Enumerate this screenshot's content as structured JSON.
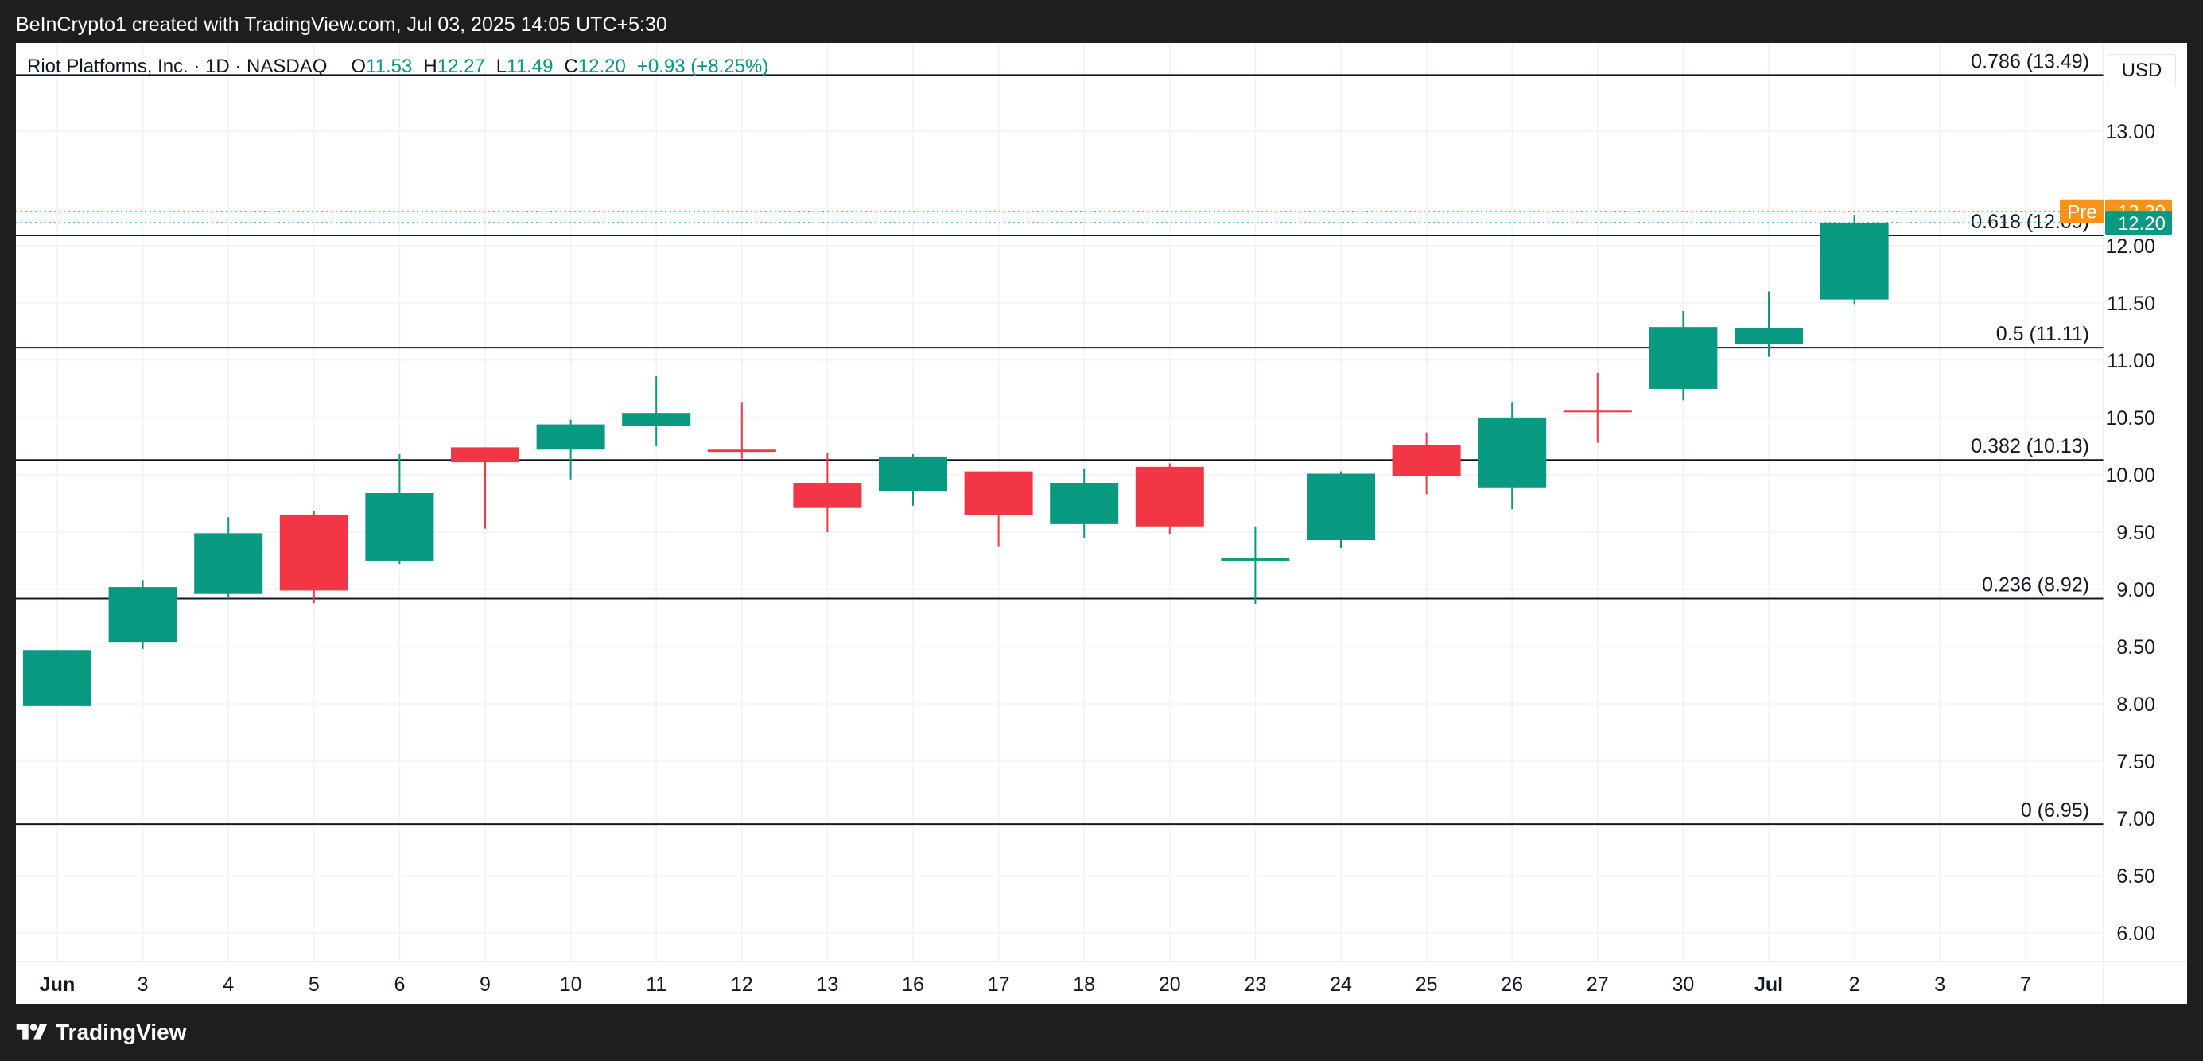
{
  "header": {
    "attribution": "BeInCrypto1 created with TradingView.com, Jul 03, 2025 14:05 UTC+5:30"
  },
  "legend": {
    "symbol": "Riot Platforms, Inc. · 1D · NASDAQ",
    "open_label": "O",
    "open": "11.53",
    "high_label": "H",
    "high": "12.27",
    "low_label": "L",
    "low": "11.49",
    "close_label": "C",
    "close": "12.20",
    "change": "+0.93 (+8.25%)"
  },
  "currency": "USD",
  "footer": {
    "brand": "TradingView"
  },
  "colors": {
    "up": "#089981",
    "down": "#f23645",
    "premarket": "#f7931a",
    "background": "#ffffff",
    "frame": "#1e1e1e"
  },
  "chart_data": {
    "type": "candlestick",
    "ylim": [
      5.75,
      13.77
    ],
    "y_ticks": [
      "6.00",
      "6.50",
      "7.00",
      "7.50",
      "8.00",
      "8.50",
      "9.00",
      "9.50",
      "10.00",
      "10.50",
      "11.00",
      "11.50",
      "12.00",
      "13.00"
    ],
    "grid": true,
    "x_labels": [
      "Jun",
      "3",
      "4",
      "5",
      "6",
      "9",
      "10",
      "11",
      "12",
      "13",
      "16",
      "17",
      "18",
      "20",
      "23",
      "24",
      "25",
      "26",
      "27",
      "30",
      "Jul",
      "2",
      "3",
      "7"
    ],
    "candles": [
      {
        "x": "Jun 2",
        "o": 7.98,
        "h": 8.47,
        "l": 7.98,
        "c": 8.47
      },
      {
        "x": "Jun 3",
        "o": 8.54,
        "h": 9.08,
        "l": 8.48,
        "c": 9.02
      },
      {
        "x": "Jun 4",
        "o": 8.96,
        "h": 9.63,
        "l": 8.92,
        "c": 9.49
      },
      {
        "x": "Jun 5",
        "o": 9.65,
        "h": 9.68,
        "l": 8.88,
        "c": 8.99
      },
      {
        "x": "Jun 6",
        "o": 9.25,
        "h": 10.18,
        "l": 9.22,
        "c": 9.84
      },
      {
        "x": "Jun 9",
        "o": 10.24,
        "h": 10.24,
        "l": 9.53,
        "c": 10.11
      },
      {
        "x": "Jun 10",
        "o": 10.22,
        "h": 10.48,
        "l": 9.96,
        "c": 10.44
      },
      {
        "x": "Jun 11",
        "o": 10.43,
        "h": 10.86,
        "l": 10.25,
        "c": 10.54
      },
      {
        "x": "Jun 12",
        "o": 10.22,
        "h": 10.63,
        "l": 10.14,
        "c": 10.2
      },
      {
        "x": "Jun 13",
        "o": 9.93,
        "h": 10.19,
        "l": 9.5,
        "c": 9.71
      },
      {
        "x": "Jun 16",
        "o": 9.86,
        "h": 10.18,
        "l": 9.73,
        "c": 10.16
      },
      {
        "x": "Jun 17",
        "o": 10.03,
        "h": 10.03,
        "l": 9.37,
        "c": 9.65
      },
      {
        "x": "Jun 18",
        "o": 9.57,
        "h": 10.05,
        "l": 9.45,
        "c": 9.93
      },
      {
        "x": "Jun 20",
        "o": 10.07,
        "h": 10.1,
        "l": 9.48,
        "c": 9.55
      },
      {
        "x": "Jun 23",
        "o": 9.25,
        "h": 9.55,
        "l": 8.87,
        "c": 9.27
      },
      {
        "x": "Jun 24",
        "o": 9.43,
        "h": 10.03,
        "l": 9.36,
        "c": 10.01
      },
      {
        "x": "Jun 25",
        "o": 10.26,
        "h": 10.37,
        "l": 9.83,
        "c": 9.99
      },
      {
        "x": "Jun 26",
        "o": 9.89,
        "h": 10.63,
        "l": 9.7,
        "c": 10.5
      },
      {
        "x": "Jun 27",
        "o": 10.56,
        "h": 10.89,
        "l": 10.28,
        "c": 10.55
      },
      {
        "x": "Jun 30",
        "o": 10.75,
        "h": 11.43,
        "l": 10.65,
        "c": 11.29
      },
      {
        "x": "Jul 1",
        "o": 11.14,
        "h": 11.6,
        "l": 11.03,
        "c": 11.28
      },
      {
        "x": "Jul 2",
        "o": 11.53,
        "h": 12.27,
        "l": 11.49,
        "c": 12.2
      }
    ],
    "fib_levels": [
      {
        "ratio": "0.786",
        "value": 13.49,
        "label": "0.786 (13.49)"
      },
      {
        "ratio": "0.618",
        "value": 12.09,
        "label": "0.618 (12.09)"
      },
      {
        "ratio": "0.5",
        "value": 11.11,
        "label": "0.5 (11.11)"
      },
      {
        "ratio": "0.382",
        "value": 10.13,
        "label": "0.382 (10.13)"
      },
      {
        "ratio": "0.236",
        "value": 8.92,
        "label": "0.236 (8.92)"
      },
      {
        "ratio": "0",
        "value": 6.95,
        "label": "0 (6.95)"
      }
    ],
    "price_tags": [
      {
        "label": "Pre",
        "value": 12.3,
        "text": "12.30",
        "color": "#f7931a"
      },
      {
        "label": "",
        "value": 12.2,
        "text": "12.20",
        "color": "#089981"
      }
    ]
  }
}
